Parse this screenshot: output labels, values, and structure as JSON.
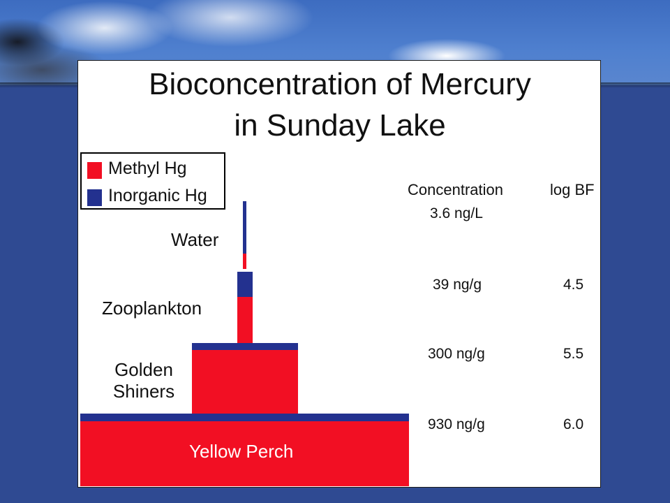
{
  "title_line1": "Bioconcentration of Mercury",
  "title_line2": "in Sunday Lake",
  "legend": [
    {
      "label": "Methyl Hg",
      "color": "#f20f23"
    },
    {
      "label": "Inorganic Hg",
      "color": "#23318f"
    }
  ],
  "columns": {
    "concentration": "Concentration",
    "log_bf": "log BF"
  },
  "chart_data": {
    "type": "bar",
    "title": "Bioconcentration of Mercury in Sunday Lake",
    "series": [
      {
        "name": "Methyl Hg",
        "color": "#f20f23"
      },
      {
        "name": "Inorganic Hg",
        "color": "#23318f"
      }
    ],
    "levels": [
      {
        "name": "Water",
        "concentration": "3.6 ng/L",
        "log_bf": ""
      },
      {
        "name": "Zooplankton",
        "concentration": "39 ng/g",
        "log_bf": "4.5"
      },
      {
        "name": "Golden Shiners",
        "concentration": "300 ng/g",
        "log_bf": "5.5"
      },
      {
        "name": "Yellow Perch",
        "concentration": "930 ng/g",
        "log_bf": "6.0"
      }
    ]
  }
}
